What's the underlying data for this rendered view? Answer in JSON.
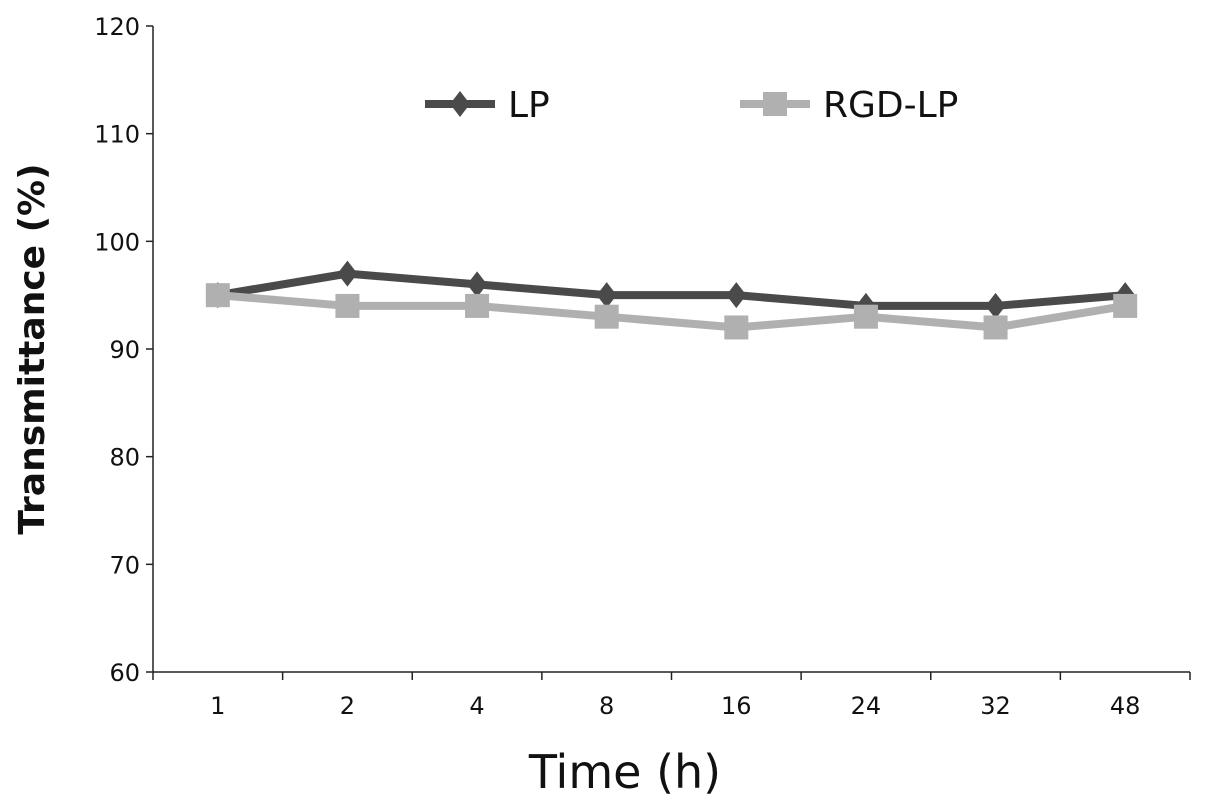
{
  "chart_data": {
    "type": "line",
    "title": "",
    "xlabel": "Time (h)",
    "ylabel": "Transmittance (%)",
    "categories": [
      "1",
      "2",
      "4",
      "8",
      "16",
      "24",
      "32",
      "48"
    ],
    "ylim": [
      60,
      120
    ],
    "yticks": [
      "60",
      "70",
      "80",
      "90",
      "100",
      "110",
      "120"
    ],
    "grid": false,
    "legend_position": "top",
    "series": [
      {
        "name": "LP",
        "marker": "diamond",
        "color": "#4a4a4a",
        "values": [
          95,
          97,
          96,
          95,
          95,
          94,
          94,
          95
        ]
      },
      {
        "name": "RGD-LP",
        "marker": "square",
        "color": "#b0b0b0",
        "values": [
          95,
          94,
          94,
          93,
          92,
          93,
          92,
          94
        ]
      }
    ]
  }
}
